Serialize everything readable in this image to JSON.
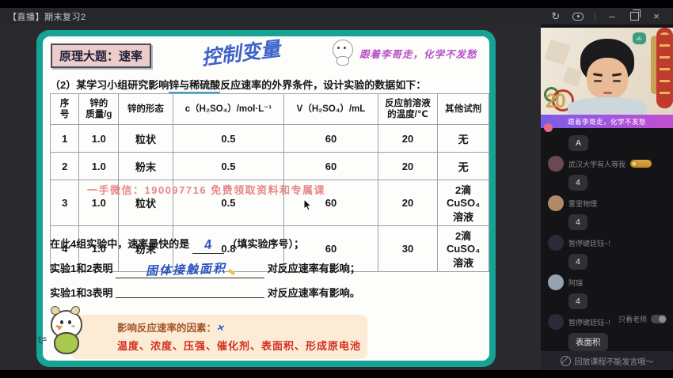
{
  "window": {
    "title": "【直播】期末复习2",
    "controls": {
      "refresh": "↻",
      "minimize": "–",
      "close": "×"
    }
  },
  "whiteboard": {
    "topic_label": "原理大题：速率",
    "annotations": {
      "control_variable": "控制变量",
      "slogan": "跟着李哥走，化学不发愁"
    },
    "question": {
      "pre": "（2）某学习小组研究影响",
      "underlined": "锌与稀硫酸",
      "post": "反应速率的外界条件，设计实验的数据如下："
    },
    "table": {
      "headers": [
        "序\n号",
        "锌的\n质量/g",
        "锌的形态",
        "c（H₂SO₄）/mol·L⁻¹",
        "V（H₂SO₄）/mL",
        "反应前溶液\n的温度/℃",
        "其他试剂"
      ],
      "rows": [
        [
          "1",
          "1.0",
          "粒状",
          "0.5",
          "60",
          "20",
          "无"
        ],
        [
          "2",
          "1.0",
          "粉末",
          "0.5",
          "60",
          "20",
          "无"
        ],
        [
          "3",
          "1.0",
          "粒状",
          "0.5",
          "60",
          "20",
          "2滴CuSO₄\n溶液"
        ],
        [
          "4",
          "1.0",
          "粉末",
          "0.8",
          "60",
          "30",
          "2滴CuSO₄\n溶液"
        ]
      ]
    },
    "watermark": "一手微信：190097716  免费领取资料和专属课",
    "fill_lines": [
      {
        "pre": "在此4组实验中，速率最快的是",
        "answer": "4",
        "post": "（填实验序号）；"
      },
      {
        "pre": "实验1和2表明",
        "answer": "固体接触面积",
        "post": "对反应速率有影响；"
      },
      {
        "pre": "实验1和3表明",
        "answer": "",
        "post": "对反应速率有影响。"
      }
    ],
    "note_box": {
      "title": "影响反应速率的因素：",
      "mark": "×",
      "factors": "温度、浓度、压强、催化剂、表面积、形成原电池"
    },
    "scribble": "ξ="
  },
  "video": {
    "banner": "跟着李哥走，化学不发愁",
    "decoration_number": "20"
  },
  "chat": {
    "messages": [
      {
        "name": "",
        "avatar_color": "",
        "badge": false,
        "text": "A"
      },
      {
        "name": "武汉大学有人等我",
        "avatar_color": "#6a4a50",
        "badge": true,
        "text": "4"
      },
      {
        "name": "雾里物理",
        "avatar_color": "#b08a64",
        "badge": false,
        "text": "4"
      },
      {
        "name": "暂停键廷钰~!",
        "avatar_color": "#2a2a38",
        "badge": false,
        "text": "4"
      },
      {
        "name": "阿瑞",
        "avatar_color": "#95a2b0",
        "badge": false,
        "text": "4"
      },
      {
        "name": "暂停键廷钰~!",
        "avatar_color": "#2a2a38",
        "badge": false,
        "text": "表面积"
      }
    ],
    "only_teacher_label": "只看老师",
    "notice": "回放课程不能发言哦～"
  }
}
